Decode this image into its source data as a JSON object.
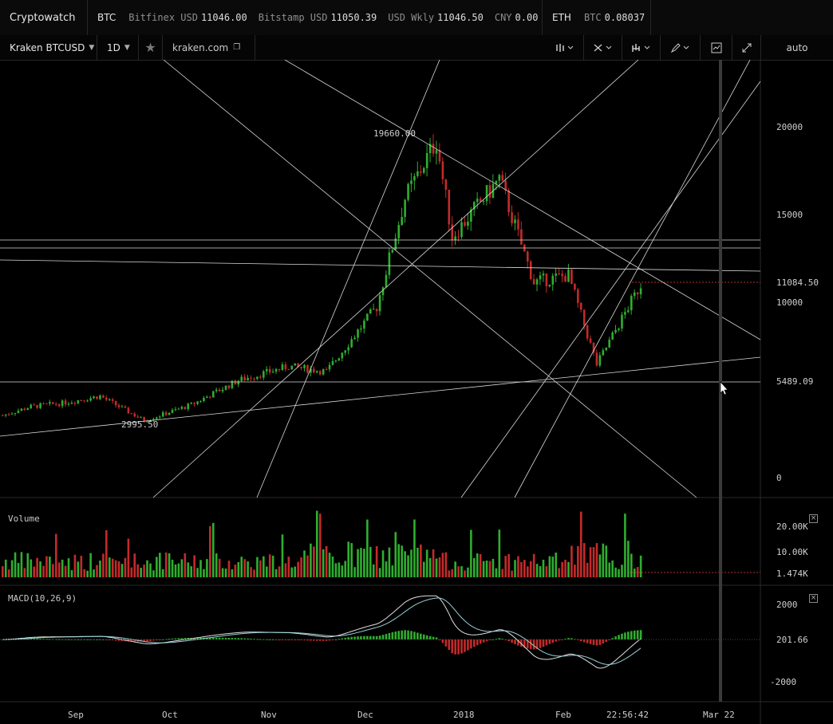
{
  "topbar": {
    "brand": "Cryptowatch",
    "btc": {
      "symbol": "BTC",
      "quotes": [
        {
          "label": "Bitfinex USD",
          "value": "11046.00"
        },
        {
          "label": "Bitstamp USD",
          "value": "11050.39"
        },
        {
          "label": "USD Wkly",
          "value": "11046.50"
        },
        {
          "label": "CNY",
          "value": "0.00"
        }
      ]
    },
    "eth": {
      "symbol": "ETH",
      "label": "BTC",
      "value": "0.08037"
    }
  },
  "toolbar": {
    "market": "Kraken BTCUSD",
    "interval": "1D",
    "exchange_link": "kraken.com",
    "scale_mode": "auto",
    "icons": [
      "star-icon",
      "external-link-icon",
      "indicators-icon",
      "drawing-tools-icon",
      "chart-type-icon",
      "pencil-icon",
      "screenshot-icon",
      "fullscreen-icon"
    ]
  },
  "price_axis": {
    "ticks": [
      "20000",
      "15000",
      "10000",
      "0"
    ],
    "current_price": "11084.50",
    "horizontal_level": "5489.09"
  },
  "annotations": {
    "high": "19660.00",
    "low": "2995.50"
  },
  "volume": {
    "title": "Volume",
    "ticks": [
      "20.00K",
      "10.00K"
    ],
    "current": "1.474K"
  },
  "macd": {
    "title": "MACD(10,26,9)",
    "ticks": [
      "2000",
      "-2000"
    ],
    "current": "201.66"
  },
  "time_axis": {
    "labels": [
      "Sep",
      "Oct",
      "Nov",
      "Dec",
      "2018",
      "Feb",
      "Mar 22"
    ],
    "cursor_time": "22:56:42"
  },
  "colors": {
    "up": "#2fae2f",
    "down": "#c42a2a",
    "line": "#d8d8d8",
    "background": "#000000"
  },
  "chart_data": {
    "type": "candlestick",
    "x_range": [
      "Aug",
      "Mar 22"
    ],
    "ylim": [
      -1000,
      22000
    ],
    "high": 19660.0,
    "low": 2995.5,
    "last": 11084.5,
    "anchors": [
      {
        "date": "Aug 1",
        "price": 3600
      },
      {
        "date": "Aug 10",
        "price": 4100
      },
      {
        "date": "Aug 20",
        "price": 4300
      },
      {
        "date": "Sep 1",
        "price": 4700
      },
      {
        "date": "Sep 15",
        "price": 3300
      },
      {
        "date": "Sep 30",
        "price": 4200
      },
      {
        "date": "Oct 15",
        "price": 5600
      },
      {
        "date": "Oct 31",
        "price": 6400
      },
      {
        "date": "Nov 12",
        "price": 6100
      },
      {
        "date": "Nov 28",
        "price": 9800
      },
      {
        "date": "Dec 7",
        "price": 16000
      },
      {
        "date": "Dec 17",
        "price": 19300
      },
      {
        "date": "Dec 22",
        "price": 13800
      },
      {
        "date": "Jan 6",
        "price": 17100
      },
      {
        "date": "Jan 17",
        "price": 11200
      },
      {
        "date": "Jan 28",
        "price": 11600
      },
      {
        "date": "Feb 6",
        "price": 6500
      },
      {
        "date": "Feb 20",
        "price": 11084.5
      }
    ]
  }
}
